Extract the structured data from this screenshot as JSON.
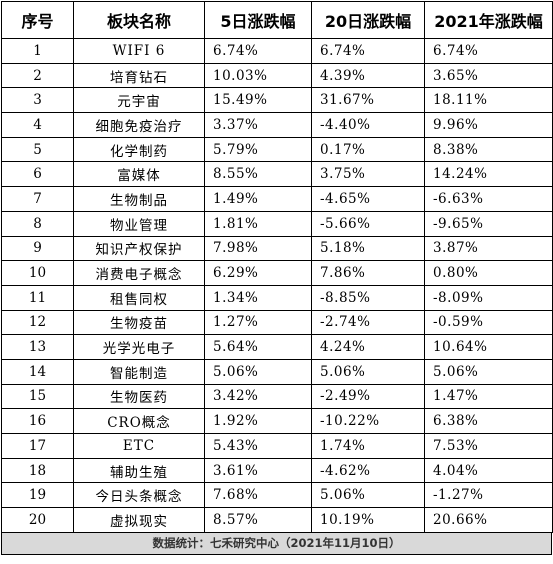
{
  "table": {
    "headers": [
      "序号",
      "板块名称",
      "5日涨跌幅",
      "20日涨跌幅",
      "2021年涨跌幅"
    ],
    "rows": [
      [
        "1",
        "WIFI 6",
        "6.74%",
        "6.74%",
        "6.74%"
      ],
      [
        "2",
        "培育钻石",
        "10.03%",
        "4.39%",
        "3.65%"
      ],
      [
        "3",
        "元宇宙",
        "15.49%",
        "31.67%",
        "18.11%"
      ],
      [
        "4",
        "细胞免疫治疗",
        "3.37%",
        "-4.40%",
        "9.96%"
      ],
      [
        "5",
        "化学制药",
        "5.79%",
        "0.17%",
        "8.38%"
      ],
      [
        "6",
        "富媒体",
        "8.55%",
        "3.75%",
        "14.24%"
      ],
      [
        "7",
        "生物制品",
        "1.49%",
        "-4.65%",
        "-6.63%"
      ],
      [
        "8",
        "物业管理",
        "1.81%",
        "-5.66%",
        "-9.65%"
      ],
      [
        "9",
        "知识产权保护",
        "7.98%",
        "5.18%",
        "3.87%"
      ],
      [
        "10",
        "消费电子概念",
        "6.29%",
        "7.86%",
        "0.80%"
      ],
      [
        "11",
        "租售同权",
        "1.34%",
        "-8.85%",
        "-8.09%"
      ],
      [
        "12",
        "生物疫苗",
        "1.27%",
        "-2.74%",
        "-0.59%"
      ],
      [
        "13",
        "光学光电子",
        "5.64%",
        "4.24%",
        "10.64%"
      ],
      [
        "14",
        "智能制造",
        "5.06%",
        "5.06%",
        "5.06%"
      ],
      [
        "15",
        "生物医药",
        "3.42%",
        "-2.49%",
        "1.47%"
      ],
      [
        "16",
        "CRO概念",
        "1.92%",
        "-10.22%",
        "6.38%"
      ],
      [
        "17",
        "ETC",
        "5.43%",
        "1.74%",
        "7.53%"
      ],
      [
        "18",
        "辅助生殖",
        "3.61%",
        "-4.62%",
        "4.04%"
      ],
      [
        "19",
        "今日头条概念",
        "7.68%",
        "5.06%",
        "-1.27%"
      ],
      [
        "20",
        "虚拟现实",
        "8.57%",
        "10.19%",
        "20.66%"
      ]
    ]
  },
  "footer": {
    "source": "数据统计：七禾研究中心（2021年11月10日）"
  }
}
